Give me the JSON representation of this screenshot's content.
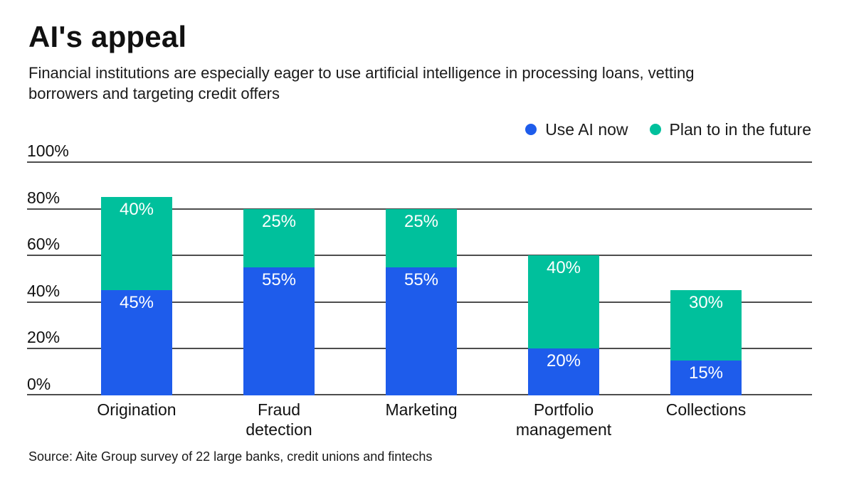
{
  "header": {
    "title": "AI's appeal",
    "subtitle_line1": "Financial institutions are especially eager to use artificial intelligence in processing loans, vetting",
    "subtitle_line2": "borrowers and targeting credit offers"
  },
  "legend": {
    "items": [
      {
        "label": "Use AI now",
        "color": "#1e5ceb"
      },
      {
        "label": "Plan to in the future",
        "color": "#00c09c"
      }
    ]
  },
  "colors": {
    "use_ai_now_blue": "#1e5ceb",
    "plan_future_teal": "#00c09c",
    "gridline": "#4d4d4d",
    "text": "#1a1a1a"
  },
  "chart_data": {
    "type": "bar",
    "stacked": true,
    "title": "AI's appeal",
    "subtitle": "Financial institutions are especially eager to use artificial intelligence in processing loans, vetting borrowers and targeting credit offers",
    "categories": [
      "Origination",
      "Fraud\ndetection",
      "Marketing",
      "Portfolio\nmanagement",
      "Collections"
    ],
    "series": [
      {
        "name": "Use AI now",
        "color": "#1e5ceb",
        "values": [
          45,
          55,
          55,
          20,
          15
        ],
        "labels": [
          "45%",
          "55%",
          "55%",
          "20%",
          "15%"
        ]
      },
      {
        "name": "Plan to in the future",
        "color": "#00c09c",
        "values": [
          40,
          25,
          25,
          40,
          30
        ],
        "labels": [
          "40%",
          "25%",
          "25%",
          "40%",
          "30%"
        ]
      }
    ],
    "stack_totals": [
      85,
      80,
      80,
      60,
      45
    ],
    "ylim": [
      0,
      100
    ],
    "ytick_values": [
      0,
      20,
      40,
      60,
      80,
      100
    ],
    "ytick_labels": [
      "0%",
      "20%",
      "40%",
      "60%",
      "80%",
      "100%"
    ],
    "grid": true,
    "legend_position": "top-right",
    "source": "Source: Aite Group survey of 22 large banks, credit unions and fintechs"
  },
  "source": {
    "text": "Source: Aite Group survey of 22 large banks, credit unions and fintechs"
  }
}
